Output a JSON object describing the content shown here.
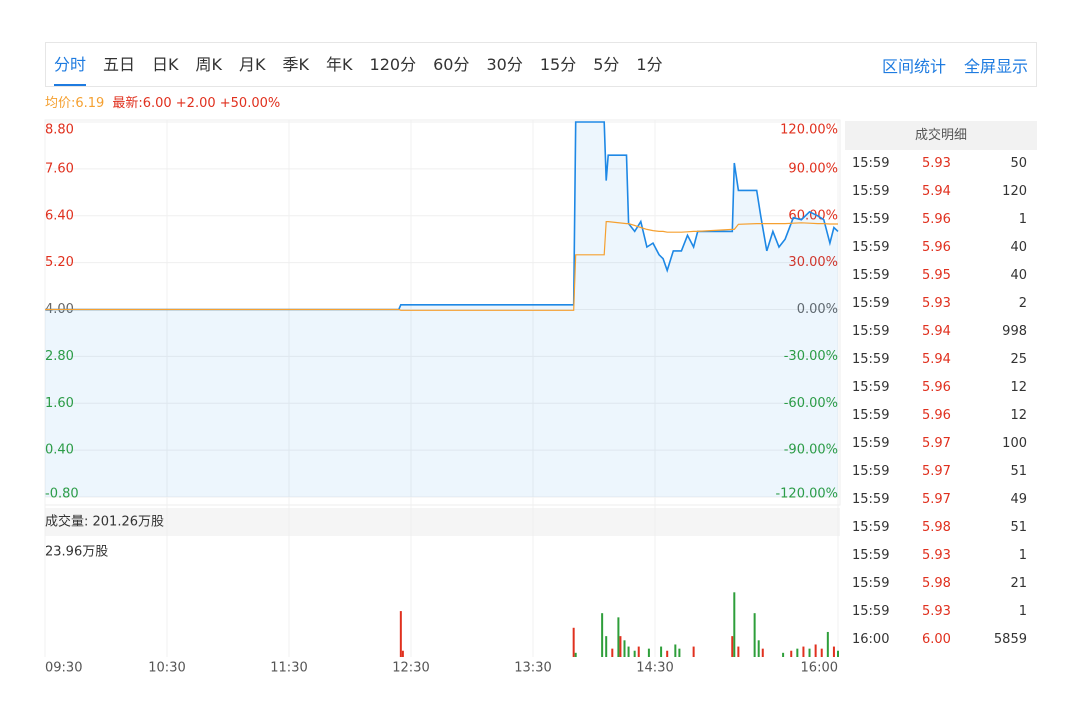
{
  "tabs": [
    "分时",
    "五日",
    "日K",
    "周K",
    "月K",
    "季K",
    "年K",
    "120分",
    "60分",
    "30分",
    "15分",
    "5分",
    "1分"
  ],
  "tools": [
    "区间统计",
    "全屏显示"
  ],
  "header": {
    "avg_price": "均价:6.19",
    "latest": "最新:6.00 +2.00 +50.00%"
  },
  "chart_data": [
    {
      "type": "line",
      "x": [
        "09:30",
        "12:24",
        "12:25",
        "13:50",
        "13:51",
        "14:05",
        "14:06",
        "14:07",
        "14:16",
        "14:17",
        "14:20",
        "14:23",
        "14:26",
        "14:29",
        "14:32",
        "14:34",
        "14:36",
        "14:39",
        "14:43",
        "14:46",
        "14:49",
        "14:51",
        "15:08",
        "15:09",
        "15:11",
        "15:20",
        "15:22",
        "15:25",
        "15:28",
        "15:31",
        "15:34",
        "15:38",
        "15:42",
        "15:46",
        "15:50",
        "15:53",
        "15:56",
        "15:58",
        "16:00"
      ],
      "series": [
        {
          "color": "#1e88e5",
          "values": [
            4.0,
            4.0,
            4.12,
            4.12,
            8.8,
            8.8,
            7.3,
            7.95,
            7.95,
            6.2,
            6.0,
            6.25,
            5.6,
            5.7,
            5.4,
            5.3,
            5.0,
            5.5,
            5.5,
            5.9,
            5.6,
            6.0,
            6.0,
            7.75,
            7.05,
            7.05,
            6.4,
            5.5,
            6.0,
            5.6,
            5.8,
            6.35,
            6.3,
            6.5,
            6.4,
            6.3,
            5.7,
            6.1,
            6.0
          ]
        },
        {
          "color": "#f5a030",
          "values": [
            4.0,
            4.0,
            3.98,
            3.98,
            5.4,
            5.4,
            6.25,
            6.25,
            6.2,
            6.2,
            6.15,
            6.1,
            6.05,
            6.02,
            6.0,
            6.0,
            5.98,
            5.98,
            5.98,
            5.99,
            6.0,
            6.0,
            6.05,
            6.05,
            6.18,
            6.2,
            6.2,
            6.2,
            6.2,
            6.2,
            6.2,
            6.21,
            6.22,
            6.21,
            6.2,
            6.2,
            6.19,
            6.19,
            6.19
          ]
        }
      ],
      "xlim": [
        "09:30",
        "16:00"
      ],
      "xticks": [
        "09:30",
        "10:30",
        "11:30",
        "12:30",
        "13:30",
        "14:30",
        "16:00"
      ],
      "ylim": [
        -0.8,
        8.8
      ],
      "yticks": [
        {
          "value": 8.8,
          "label": "8.80"
        },
        {
          "value": 7.6,
          "label": "7.60"
        },
        {
          "value": 6.4,
          "label": "6.40"
        },
        {
          "value": 5.2,
          "label": "5.20"
        },
        {
          "value": 4,
          "label": "4.00"
        },
        {
          "value": 2.8,
          "label": "2.80"
        },
        {
          "value": 1.6,
          "label": "1.60"
        },
        {
          "value": 0.4,
          "label": "0.40"
        },
        {
          "value": -0.8,
          "label": "-0.80"
        }
      ],
      "y2lim": [
        -120,
        120
      ],
      "y2ticks": [
        {
          "value": 120,
          "label": "120.00%"
        },
        {
          "value": 90,
          "label": "90.00%"
        },
        {
          "value": 60,
          "label": "60.00%"
        },
        {
          "value": 30,
          "label": "30.00%"
        },
        {
          "value": 0,
          "label": "0.00%"
        },
        {
          "value": -30,
          "label": "-30.00%"
        },
        {
          "value": -60,
          "label": "-60.00%"
        },
        {
          "value": -90,
          "label": "-90.00%"
        },
        {
          "value": -120,
          "label": "-120.00%"
        }
      ],
      "grid": true
    },
    {
      "type": "bar",
      "title": "成交量: 201.26万股",
      "x": [
        "12:25",
        "12:26",
        "13:50",
        "13:51",
        "14:04",
        "14:06",
        "14:09",
        "14:12",
        "14:13",
        "14:15",
        "14:17",
        "14:20",
        "14:22",
        "14:27",
        "14:33",
        "14:36",
        "14:40",
        "14:42",
        "14:49",
        "15:08",
        "15:09",
        "15:11",
        "15:19",
        "15:21",
        "15:23",
        "15:33",
        "15:37",
        "15:40",
        "15:43",
        "15:46",
        "15:49",
        "15:52",
        "15:55",
        "15:58",
        "16:00"
      ],
      "values": [
        11.0,
        1.5,
        7.0,
        1.0,
        10.5,
        5.0,
        2.0,
        9.5,
        5.0,
        4.0,
        2.5,
        1.5,
        2.5,
        2.0,
        2.5,
        1.5,
        3.0,
        2.0,
        2.5,
        5.0,
        15.5,
        2.5,
        10.5,
        4.0,
        2.0,
        1.0,
        1.5,
        2.0,
        2.5,
        2.0,
        3.0,
        2.0,
        6.0,
        2.5,
        1.5
      ],
      "colors": [
        "#e0301e",
        "#e0301e",
        "#e0301e",
        "#2e9e3a",
        "#2e9e3a",
        "#2e9e3a",
        "#e0301e",
        "#2e9e3a",
        "#e0301e",
        "#2e9e3a",
        "#2e9e3a",
        "#2e9e3a",
        "#e0301e",
        "#2e9e3a",
        "#2e9e3a",
        "#e0301e",
        "#2e9e3a",
        "#2e9e3a",
        "#e0301e",
        "#e0301e",
        "#2e9e3a",
        "#e0301e",
        "#2e9e3a",
        "#2e9e3a",
        "#e0301e",
        "#2e9e3a",
        "#e0301e",
        "#2e9e3a",
        "#e0301e",
        "#2e9e3a",
        "#e0301e",
        "#e0301e",
        "#2e9e3a",
        "#e0301e",
        "#2e9e3a"
      ],
      "xlim": [
        "09:30",
        "16:00"
      ],
      "ylim": [
        0,
        23.96
      ],
      "yticks": [
        {
          "value": 23.96,
          "label": "23.96万股"
        }
      ]
    }
  ],
  "trades": {
    "title": "成交明细",
    "rows": [
      [
        "15:59",
        "5.93",
        "50"
      ],
      [
        "15:59",
        "5.94",
        "120"
      ],
      [
        "15:59",
        "5.96",
        "1"
      ],
      [
        "15:59",
        "5.96",
        "40"
      ],
      [
        "15:59",
        "5.95",
        "40"
      ],
      [
        "15:59",
        "5.93",
        "2"
      ],
      [
        "15:59",
        "5.94",
        "998"
      ],
      [
        "15:59",
        "5.94",
        "25"
      ],
      [
        "15:59",
        "5.96",
        "12"
      ],
      [
        "15:59",
        "5.96",
        "12"
      ],
      [
        "15:59",
        "5.97",
        "100"
      ],
      [
        "15:59",
        "5.97",
        "51"
      ],
      [
        "15:59",
        "5.97",
        "49"
      ],
      [
        "15:59",
        "5.98",
        "51"
      ],
      [
        "15:59",
        "5.93",
        "1"
      ],
      [
        "15:59",
        "5.98",
        "21"
      ],
      [
        "15:59",
        "5.93",
        "1"
      ],
      [
        "16:00",
        "6.00",
        "5859"
      ]
    ]
  }
}
